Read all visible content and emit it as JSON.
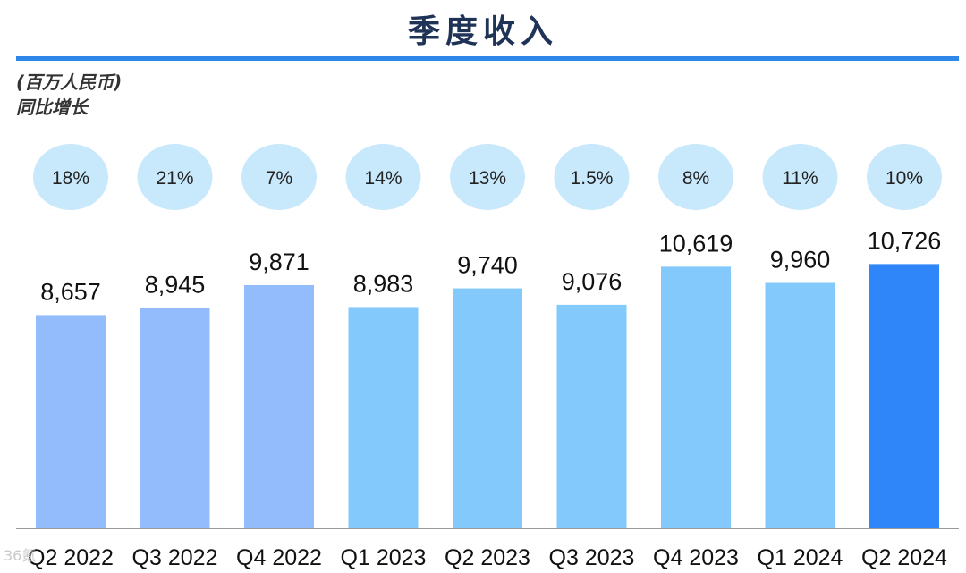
{
  "chart_data": {
    "type": "bar",
    "title": "季度收入",
    "unit_label": "(百万人民币)",
    "growth_label": "同比增长",
    "categories": [
      "Q2 2022",
      "Q3 2022",
      "Q4 2022",
      "Q1 2023",
      "Q2 2023",
      "Q3 2023",
      "Q4 2023",
      "Q1 2024",
      "Q2 2024"
    ],
    "values": [
      8657,
      8945,
      9871,
      8983,
      9740,
      9076,
      10619,
      9960,
      10726
    ],
    "value_labels": [
      "8,657",
      "8,945",
      "9,871",
      "8,983",
      "9,740",
      "9,076",
      "10,619",
      "9,960",
      "10,726"
    ],
    "yoy_growth": [
      "18%",
      "21%",
      "7%",
      "14%",
      "13%",
      "1.5%",
      "8%",
      "11%",
      "10%"
    ],
    "colors": {
      "bar_2022": "#92bcfb",
      "bar_2023_2024": "#83c9fb",
      "bar_latest": "#2e86f9",
      "growth_bubble": "#c8e8fb",
      "accent_rule": "#2e86e8"
    }
  },
  "watermark": "36氪"
}
